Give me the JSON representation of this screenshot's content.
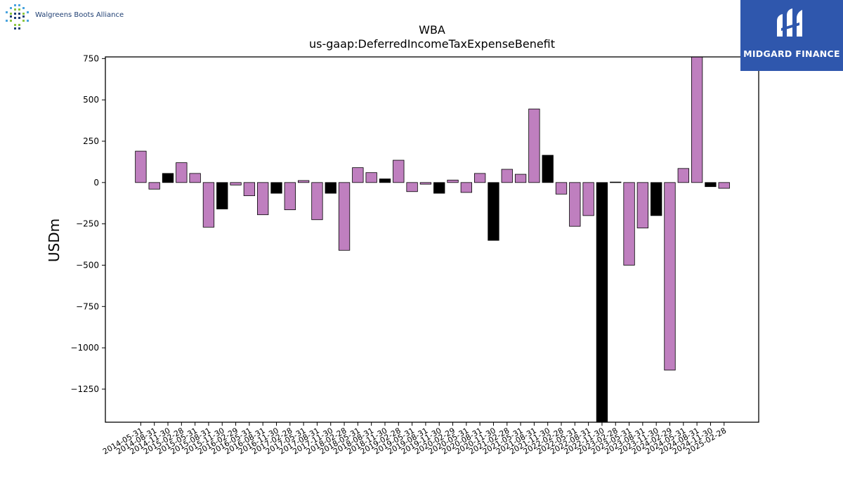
{
  "header": {
    "left_logo_text": "Walgreens Boots Alliance",
    "right_logo_text": "MIDGARD FINANCE"
  },
  "colors": {
    "bar_purple": "#bf7fbf",
    "bar_black": "#000000",
    "logo_blue": "#2f57ad",
    "brand_navy": "#1f3f73"
  },
  "chart_data": {
    "type": "bar",
    "title": "WBA",
    "subtitle": "us-gaap:DeferredIncomeTaxExpenseBenefit",
    "xlabel": "",
    "ylabel": "USDm",
    "ylim": [
      -1450,
      760
    ],
    "yticks": [
      750,
      500,
      250,
      0,
      -250,
      -500,
      -750,
      -1000,
      -1250
    ],
    "ytick_labels": [
      "750",
      "500",
      "250",
      "0",
      "−250",
      "−500",
      "−750",
      "−1000",
      "−1250"
    ],
    "grid": false,
    "categories": [
      "2014-05-31",
      "2014-08-31",
      "2014-11-30",
      "2015-02-28",
      "2015-05-31",
      "2015-08-31",
      "2015-11-30",
      "2016-02-29",
      "2016-05-31",
      "2016-08-31",
      "2016-11-30",
      "2017-02-28",
      "2017-05-31",
      "2017-08-31",
      "2017-11-30",
      "2018-02-28",
      "2018-05-31",
      "2018-08-31",
      "2018-11-30",
      "2019-02-28",
      "2019-05-31",
      "2019-08-31",
      "2019-11-30",
      "2020-02-29",
      "2020-05-31",
      "2020-08-31",
      "2020-11-30",
      "2021-02-28",
      "2021-05-31",
      "2021-08-31",
      "2021-11-30",
      "2022-02-28",
      "2022-05-31",
      "2022-08-31",
      "2022-11-30",
      "2023-02-28",
      "2023-05-31",
      "2023-08-31",
      "2023-11-30",
      "2024-02-29",
      "2024-05-31",
      "2024-08-31",
      "2024-11-30",
      "2025-02-28"
    ],
    "values": [
      190,
      -40,
      55,
      120,
      55,
      -270,
      -160,
      -15,
      -80,
      -195,
      -65,
      -165,
      12,
      -225,
      -65,
      -410,
      90,
      60,
      22,
      135,
      -55,
      -10,
      -65,
      15,
      -60,
      55,
      -350,
      80,
      50,
      445,
      165,
      -70,
      -265,
      -200,
      -1450,
      3,
      -500,
      -275,
      -200,
      -1135,
      85,
      760,
      -25,
      -35
    ],
    "bar_colors": [
      "purple",
      "purple",
      "black",
      "purple",
      "purple",
      "purple",
      "black",
      "purple",
      "purple",
      "purple",
      "black",
      "purple",
      "purple",
      "purple",
      "black",
      "purple",
      "purple",
      "purple",
      "black",
      "purple",
      "purple",
      "purple",
      "black",
      "purple",
      "purple",
      "purple",
      "black",
      "purple",
      "purple",
      "purple",
      "black",
      "purple",
      "purple",
      "purple",
      "black",
      "purple",
      "purple",
      "purple",
      "black",
      "purple",
      "purple",
      "purple",
      "black",
      "purple"
    ]
  }
}
